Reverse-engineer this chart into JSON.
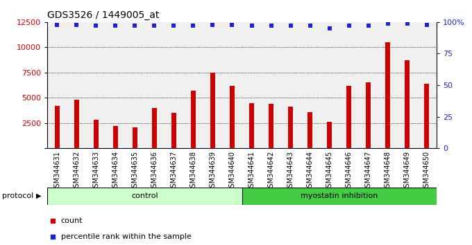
{
  "title": "GDS3526 / 1449005_at",
  "samples": [
    "GSM344631",
    "GSM344632",
    "GSM344633",
    "GSM344634",
    "GSM344635",
    "GSM344636",
    "GSM344637",
    "GSM344638",
    "GSM344639",
    "GSM344640",
    "GSM344641",
    "GSM344642",
    "GSM344643",
    "GSM344644",
    "GSM344645",
    "GSM344646",
    "GSM344647",
    "GSM344648",
    "GSM344649",
    "GSM344650"
  ],
  "counts": [
    4200,
    4800,
    2800,
    2200,
    2100,
    4000,
    3500,
    5700,
    7500,
    6200,
    4500,
    4400,
    4100,
    3600,
    2600,
    6200,
    6500,
    10500,
    8700,
    6400
  ],
  "percentile_ranks": [
    98,
    98,
    97,
    97,
    97,
    97,
    97,
    97,
    98,
    98,
    97,
    97,
    97,
    97,
    95,
    97,
    97,
    99,
    99,
    98
  ],
  "control_count": 10,
  "myostatin_count": 10,
  "ylim_left": [
    0,
    12500
  ],
  "ylim_right": [
    0,
    100
  ],
  "yticks_left": [
    0,
    2500,
    5000,
    7500,
    10000,
    12500
  ],
  "yticks_right": [
    0,
    25,
    50,
    75,
    100
  ],
  "bar_color": "#cc0000",
  "dot_color": "#2222cc",
  "control_color": "#ccffcc",
  "myostatin_color": "#44cc44",
  "sample_bg_color": "#cccccc",
  "grid_color": "#000000",
  "title_fontsize": 10,
  "tick_fontsize": 7,
  "axis_label_fontsize": 9,
  "protocol_label": "protocol",
  "control_label": "control",
  "myostatin_label": "myostatin inhibition",
  "legend_count": "count",
  "legend_percentile": "percentile rank within the sample"
}
